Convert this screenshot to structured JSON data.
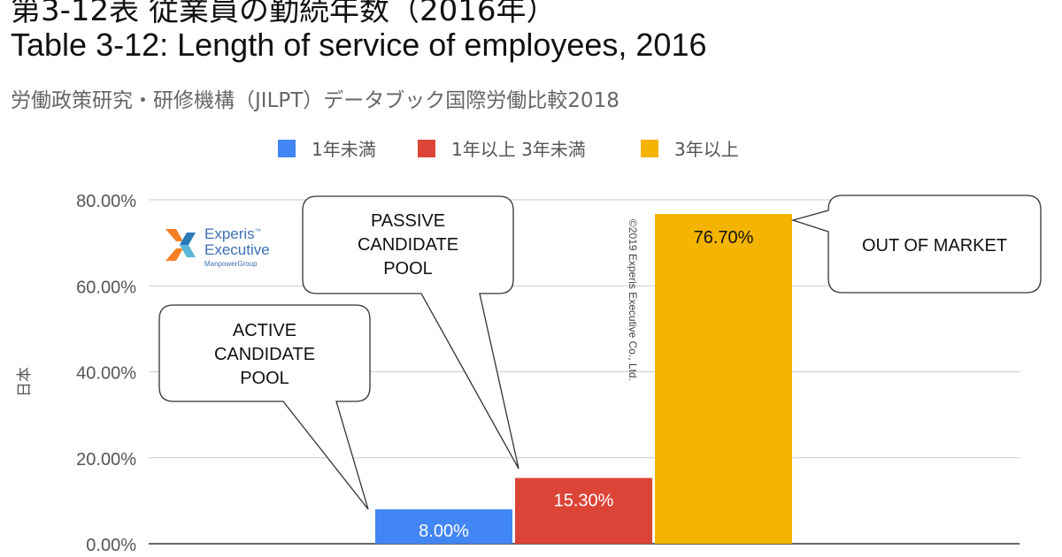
{
  "page": {
    "title_jp": "第3-12表 従業員の勤続年数（2016年）",
    "title_en": "Table 3-12: Length of service of employees, 2016",
    "subtitle": "労働政策研究・研修機構（JILPT）データブック国際労働比較2018"
  },
  "logo": {
    "line1": "Experis",
    "tm": "™",
    "line2": "Executive",
    "line3": "ManpowerGroup"
  },
  "copyright": "©2019 Experis Executive Co., Ltd.",
  "chart_data": {
    "type": "bar",
    "categories": [
      "日本"
    ],
    "ylabel": "日本",
    "ylim": [
      0,
      80
    ],
    "yticks": [
      0,
      20,
      40,
      60,
      80
    ],
    "ytick_labels": [
      "0.00%",
      "20.00%",
      "40.00%",
      "60.00%",
      "80.00%"
    ],
    "legend_position": "top-center",
    "grid": true,
    "series": [
      {
        "name": "1年未満",
        "color": "#4285f4",
        "value": 8.0,
        "label": "8.00%"
      },
      {
        "name": "1年以上 3年未満",
        "color": "#db4437",
        "value": 15.3,
        "label": "15.30%"
      },
      {
        "name": "3年以上",
        "color": "#f4b400",
        "value": 76.7,
        "label": "76.70%"
      }
    ],
    "annotations": [
      {
        "text": [
          "ACTIVE",
          "CANDIDATE",
          "POOL"
        ],
        "points_to": "1年未満"
      },
      {
        "text": [
          "PASSIVE",
          "CANDIDATE",
          "POOL"
        ],
        "points_to": "1年以上 3年未満"
      },
      {
        "text": [
          "OUT OF MARKET"
        ],
        "points_to": "3年以上"
      }
    ]
  }
}
